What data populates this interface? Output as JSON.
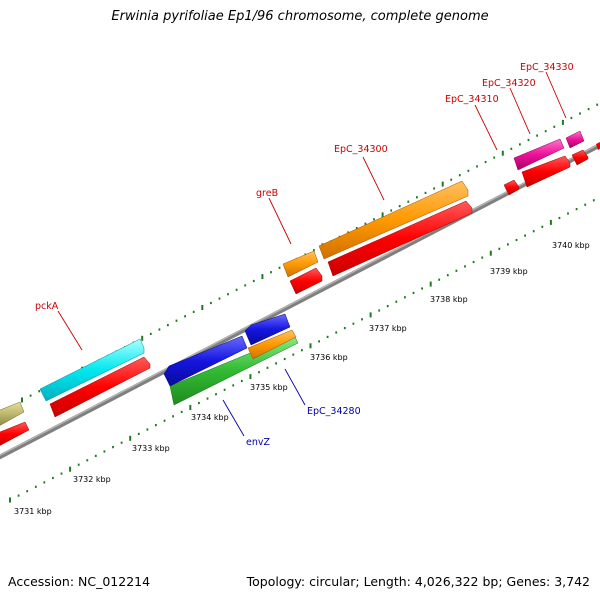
{
  "title": "Erwinia pyrifoliae Ep1/96 chromosome, complete genome",
  "footer": {
    "accession": "Accession: NC_012214",
    "summary": "Topology: circular; Length: 4,026,322 bp; Genes: 3,742"
  },
  "colors": {
    "backbone": "#808080",
    "tick": "#1f7a1f",
    "label_top": "#cc0000",
    "label_bottom": "#0000aa",
    "red_strip": "#ff0000",
    "olive": "#bdb76b",
    "cyan": "#00e5ee",
    "orange": "#ff9900",
    "magenta": "#ee1199",
    "blue": "#1515e0",
    "green": "#33bb33"
  },
  "scale_labels": [
    "3731 kbp",
    "3732 kbp",
    "3733 kbp",
    "3734 kbp",
    "3735 kbp",
    "3736 kbp",
    "3737 kbp",
    "3738 kbp",
    "3739 kbp",
    "3740 kbp"
  ],
  "gene_labels": {
    "pckA": "pckA",
    "greB": "greB",
    "EpC_34300": "EpC_34300",
    "EpC_34310": "EpC_34310",
    "EpC_34320": "EpC_34320",
    "EpC_34330": "EpC_34330",
    "envZ": "envZ",
    "EpC_34280": "EpC_34280"
  }
}
